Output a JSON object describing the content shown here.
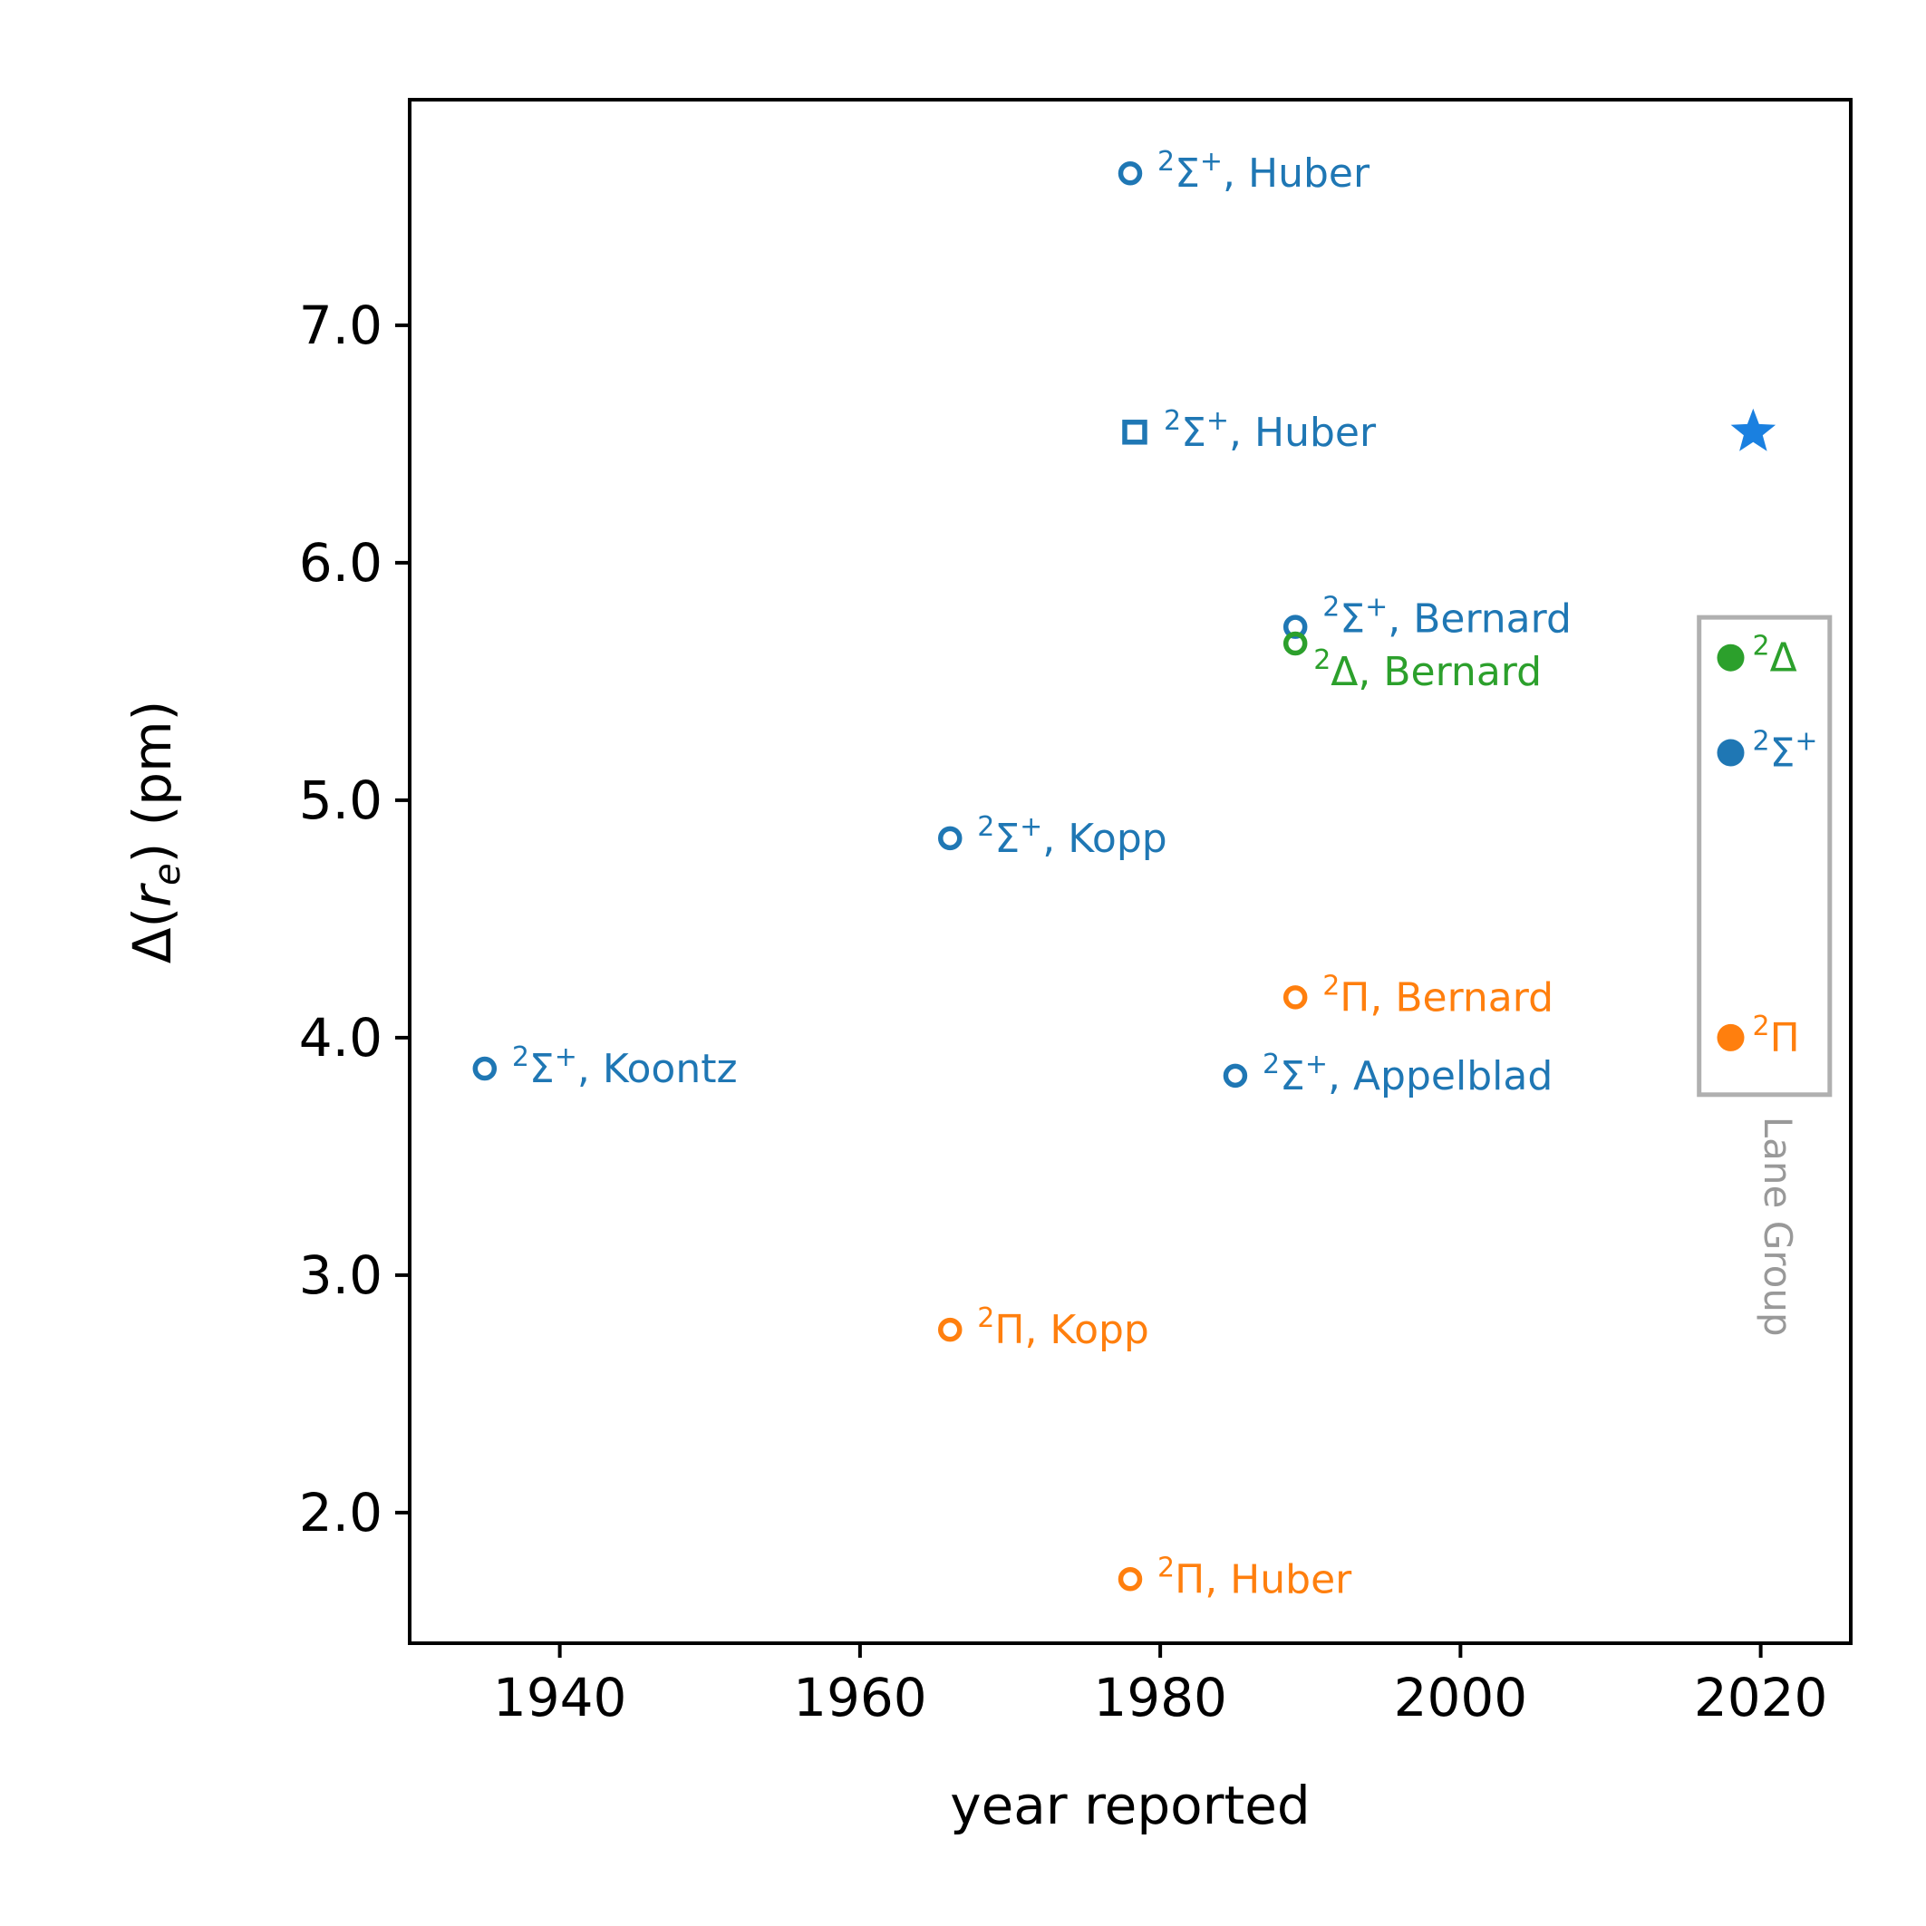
{
  "chart_data": {
    "type": "scatter",
    "title": "",
    "xlabel": "year reported",
    "ylabel_parts": {
      "prefix": "Δ(",
      "var": "r",
      "sub": "e",
      "suffix": ") (pm)"
    },
    "xlim": [
      1930,
      2026
    ],
    "ylim": [
      1.45,
      7.95
    ],
    "xticks": [
      1940,
      1960,
      1980,
      2000,
      2020
    ],
    "xtick_labels": [
      "1940",
      "1960",
      "1980",
      "2000",
      "2020"
    ],
    "yticks": [
      2.0,
      3.0,
      4.0,
      5.0,
      6.0,
      7.0
    ],
    "ytick_labels": [
      "2.0",
      "3.0",
      "4.0",
      "5.0",
      "6.0",
      "7.0"
    ],
    "colors": {
      "sigma": "#1f77b4",
      "pi": "#ff7f0e",
      "delta": "#2ca02c",
      "star": "#1a80e0",
      "group_box": "#b0b0b0",
      "group_text": "#999999",
      "axis": "#000000"
    },
    "points": [
      {
        "x": 1935,
        "y": 3.87,
        "series": "sigma",
        "marker": "open-circle",
        "state_sup": "2",
        "state": "Σ",
        "state_plus": "+",
        "ref": ", Koontz"
      },
      {
        "x": 1966,
        "y": 4.84,
        "series": "sigma",
        "marker": "open-circle",
        "state_sup": "2",
        "state": "Σ",
        "state_plus": "+",
        "ref": ", Kopp"
      },
      {
        "x": 1966,
        "y": 2.77,
        "series": "pi",
        "marker": "open-circle",
        "state_sup": "2",
        "state": "Π",
        "state_plus": "",
        "ref": ", Kopp"
      },
      {
        "x": 1978,
        "y": 7.64,
        "series": "sigma",
        "marker": "open-circle",
        "state_sup": "2",
        "state": "Σ",
        "state_plus": "+",
        "ref": ", Huber"
      },
      {
        "x": 1978.3,
        "y": 6.55,
        "series": "sigma",
        "marker": "open-square",
        "state_sup": "2",
        "state": "Σ",
        "state_plus": "+",
        "ref": ", Huber"
      },
      {
        "x": 1978,
        "y": 1.72,
        "series": "pi",
        "marker": "open-circle",
        "state_sup": "2",
        "state": "Π",
        "state_plus": "",
        "ref": ", Huber"
      },
      {
        "x": 1985,
        "y": 3.84,
        "series": "sigma",
        "marker": "open-circle",
        "state_sup": "2",
        "state": "Σ",
        "state_plus": "+",
        "ref": ", Appelblad"
      },
      {
        "x": 1989,
        "y": 5.73,
        "series": "sigma",
        "marker": "open-circle",
        "state_sup": "2",
        "state": "Σ",
        "state_plus": "+",
        "ref": ", Bernard"
      },
      {
        "x": 1989,
        "y": 5.66,
        "series": "delta",
        "marker": "open-circle",
        "state_sup": "2",
        "state": "Δ",
        "state_plus": "",
        "ref": ", Bernard"
      },
      {
        "x": 1989,
        "y": 4.17,
        "series": "pi",
        "marker": "open-circle",
        "state_sup": "2",
        "state": "Π",
        "state_plus": "",
        "ref": ", Bernard"
      },
      {
        "x": 2018,
        "y": 5.6,
        "series": "delta",
        "marker": "filled-circle",
        "state_sup": "2",
        "state": "Δ",
        "state_plus": "",
        "ref": ""
      },
      {
        "x": 2018,
        "y": 5.2,
        "series": "sigma",
        "marker": "filled-circle",
        "state_sup": "2",
        "state": "Σ",
        "state_plus": "+",
        "ref": ""
      },
      {
        "x": 2018,
        "y": 4.0,
        "series": "pi",
        "marker": "filled-circle",
        "state_sup": "2",
        "state": "Π",
        "state_plus": "",
        "ref": ""
      },
      {
        "x": 2019.5,
        "y": 6.55,
        "series": "star",
        "marker": "star",
        "state_sup": "",
        "state": "",
        "state_plus": "",
        "ref": ""
      }
    ],
    "group": {
      "label": "Lane Group",
      "x_range": [
        2015.9,
        2024.6
      ],
      "y_range": [
        3.76,
        5.77
      ]
    }
  }
}
